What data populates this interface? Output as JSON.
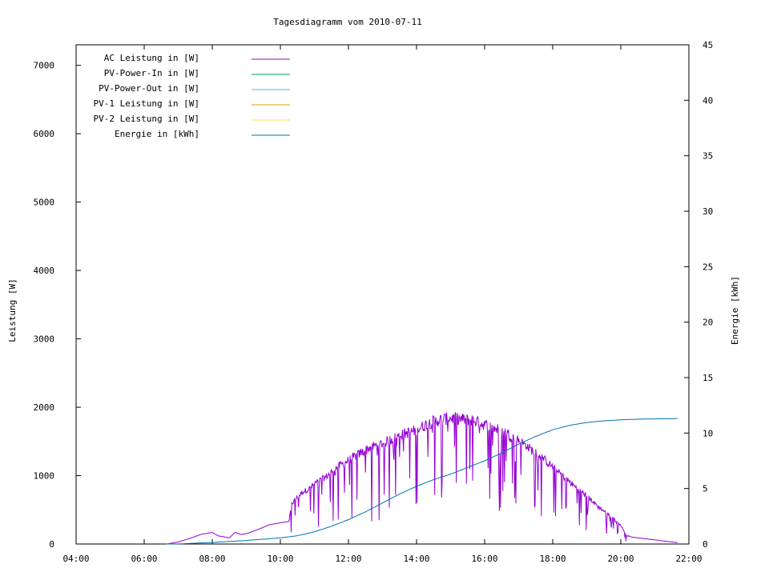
{
  "chart_data": {
    "type": "line",
    "title": "Tagesdiagramm vom 2010-07-11",
    "ylabel": "Leistung [W]",
    "y2label": "Energie [kWh]",
    "xlim": [
      "04:00",
      "22:00"
    ],
    "ylim": [
      0,
      7300
    ],
    "y2lim": [
      0,
      45
    ],
    "x_ticks": [
      "04:00",
      "06:00",
      "08:00",
      "10:00",
      "12:00",
      "14:00",
      "16:00",
      "18:00",
      "20:00",
      "22:00"
    ],
    "y_ticks": [
      0,
      1000,
      2000,
      3000,
      4000,
      5000,
      6000,
      7000
    ],
    "y2_ticks": [
      0,
      5,
      10,
      15,
      20,
      25,
      30,
      35,
      40,
      45
    ],
    "legend_position": "top-left",
    "colors": {
      "ac": "#9400d3",
      "pv_in": "#009e73",
      "pv_out": "#56b4e9",
      "pv1": "#e69f00",
      "pv2": "#f0e442",
      "energy": "#0072b2"
    },
    "series": [
      {
        "name": "AC Leistung in [W]",
        "key": "ac",
        "axis": "y1",
        "x": [
          "06:40",
          "07:00",
          "07:20",
          "07:40",
          "08:00",
          "08:10",
          "08:30",
          "08:40",
          "08:50",
          "09:00",
          "09:20",
          "09:40",
          "10:00",
          "10:15",
          "10:20",
          "10:30",
          "10:40",
          "10:50",
          "11:00",
          "11:20",
          "11:40",
          "12:00",
          "12:20",
          "12:40",
          "13:00",
          "13:20",
          "13:40",
          "14:00",
          "14:20",
          "14:40",
          "15:00",
          "15:20",
          "15:40",
          "16:00",
          "16:20",
          "16:40",
          "17:00",
          "17:20",
          "17:40",
          "18:00",
          "18:20",
          "18:40",
          "19:00",
          "19:20",
          "19:40",
          "20:00",
          "20:10",
          "20:20",
          "20:40",
          "21:00",
          "21:20",
          "21:40"
        ],
        "values": [
          0,
          30,
          80,
          140,
          170,
          120,
          90,
          170,
          140,
          150,
          210,
          280,
          310,
          330,
          600,
          700,
          780,
          820,
          900,
          1000,
          1150,
          1250,
          1350,
          1450,
          1500,
          1580,
          1650,
          1700,
          1800,
          1850,
          1880,
          1860,
          1850,
          1780,
          1720,
          1650,
          1550,
          1420,
          1300,
          1150,
          1000,
          850,
          720,
          560,
          430,
          280,
          130,
          100,
          80,
          60,
          40,
          20
        ],
        "dip_amplitude": 0.78
      },
      {
        "name": "PV-Power-In in [W]",
        "key": "pv_in",
        "axis": "y1",
        "x": [],
        "values": []
      },
      {
        "name": "PV-Power-Out in [W]",
        "key": "pv_out",
        "axis": "y1",
        "x": [],
        "values": []
      },
      {
        "name": "PV-1 Leistung in [W]",
        "key": "pv1",
        "axis": "y1",
        "x": [],
        "values": []
      },
      {
        "name": "PV-2 Leistung in [W]",
        "key": "pv2",
        "axis": "y1",
        "x": [],
        "values": []
      },
      {
        "name": "Energie in [kWh]",
        "key": "energy",
        "axis": "y2",
        "x": [
          "06:40",
          "07:00",
          "08:00",
          "09:00",
          "10:00",
          "10:30",
          "11:00",
          "11:30",
          "12:00",
          "12:30",
          "13:00",
          "13:30",
          "14:00",
          "14:30",
          "15:00",
          "15:30",
          "16:00",
          "16:30",
          "17:00",
          "17:30",
          "18:00",
          "18:30",
          "19:00",
          "19:30",
          "20:00",
          "20:30",
          "21:00",
          "21:40"
        ],
        "values": [
          0,
          0.01,
          0.14,
          0.32,
          0.55,
          0.75,
          1.1,
          1.6,
          2.2,
          2.9,
          3.7,
          4.5,
          5.2,
          5.8,
          6.3,
          6.9,
          7.5,
          8.2,
          9.0,
          9.7,
          10.3,
          10.7,
          10.95,
          11.1,
          11.2,
          11.25,
          11.28,
          11.3
        ]
      }
    ]
  }
}
